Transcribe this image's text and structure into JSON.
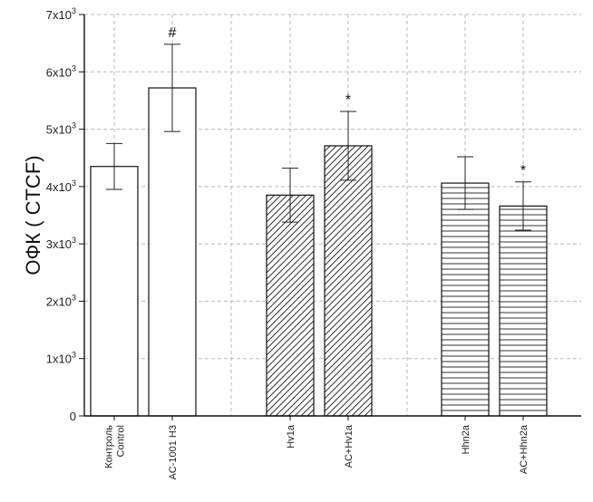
{
  "chart_data": {
    "type": "bar",
    "ylabel": "ОФК ( CTCF)",
    "xlabel": "",
    "ylim": [
      0,
      7000
    ],
    "yticks": [
      {
        "value": 0,
        "base": "0",
        "exp": ""
      },
      {
        "value": 1000,
        "base": "1x10",
        "exp": "3"
      },
      {
        "value": 2000,
        "base": "2x10",
        "exp": "3"
      },
      {
        "value": 3000,
        "base": "3x10",
        "exp": "3"
      },
      {
        "value": 4000,
        "base": "4x10",
        "exp": "3"
      },
      {
        "value": 5000,
        "base": "5x10",
        "exp": "3"
      },
      {
        "value": 6000,
        "base": "6x10",
        "exp": "3"
      },
      {
        "value": 7000,
        "base": "7x10",
        "exp": "3"
      }
    ],
    "grid": true,
    "bars": [
      {
        "label_lines": [
          "Контроль",
          "Control"
        ],
        "value": 4350,
        "error": 400,
        "pattern": "none",
        "marker": ""
      },
      {
        "label_lines": [
          "AC-1001 H3"
        ],
        "value": 5720,
        "error": 760,
        "pattern": "none",
        "marker": "#"
      },
      {
        "label_lines": [
          "Hv1a"
        ],
        "value": 3850,
        "error": 470,
        "pattern": "diagonal",
        "marker": ""
      },
      {
        "label_lines": [
          "AC+Hv1a"
        ],
        "value": 4710,
        "error": 600,
        "pattern": "diagonal",
        "marker": "*"
      },
      {
        "label_lines": [
          "Hhn2a"
        ],
        "value": 4060,
        "error": 460,
        "pattern": "horizontal",
        "marker": ""
      },
      {
        "label_lines": [
          "AC+Hhn2a"
        ],
        "value": 3660,
        "error": 420,
        "pattern": "horizontal",
        "marker": "*"
      }
    ]
  }
}
